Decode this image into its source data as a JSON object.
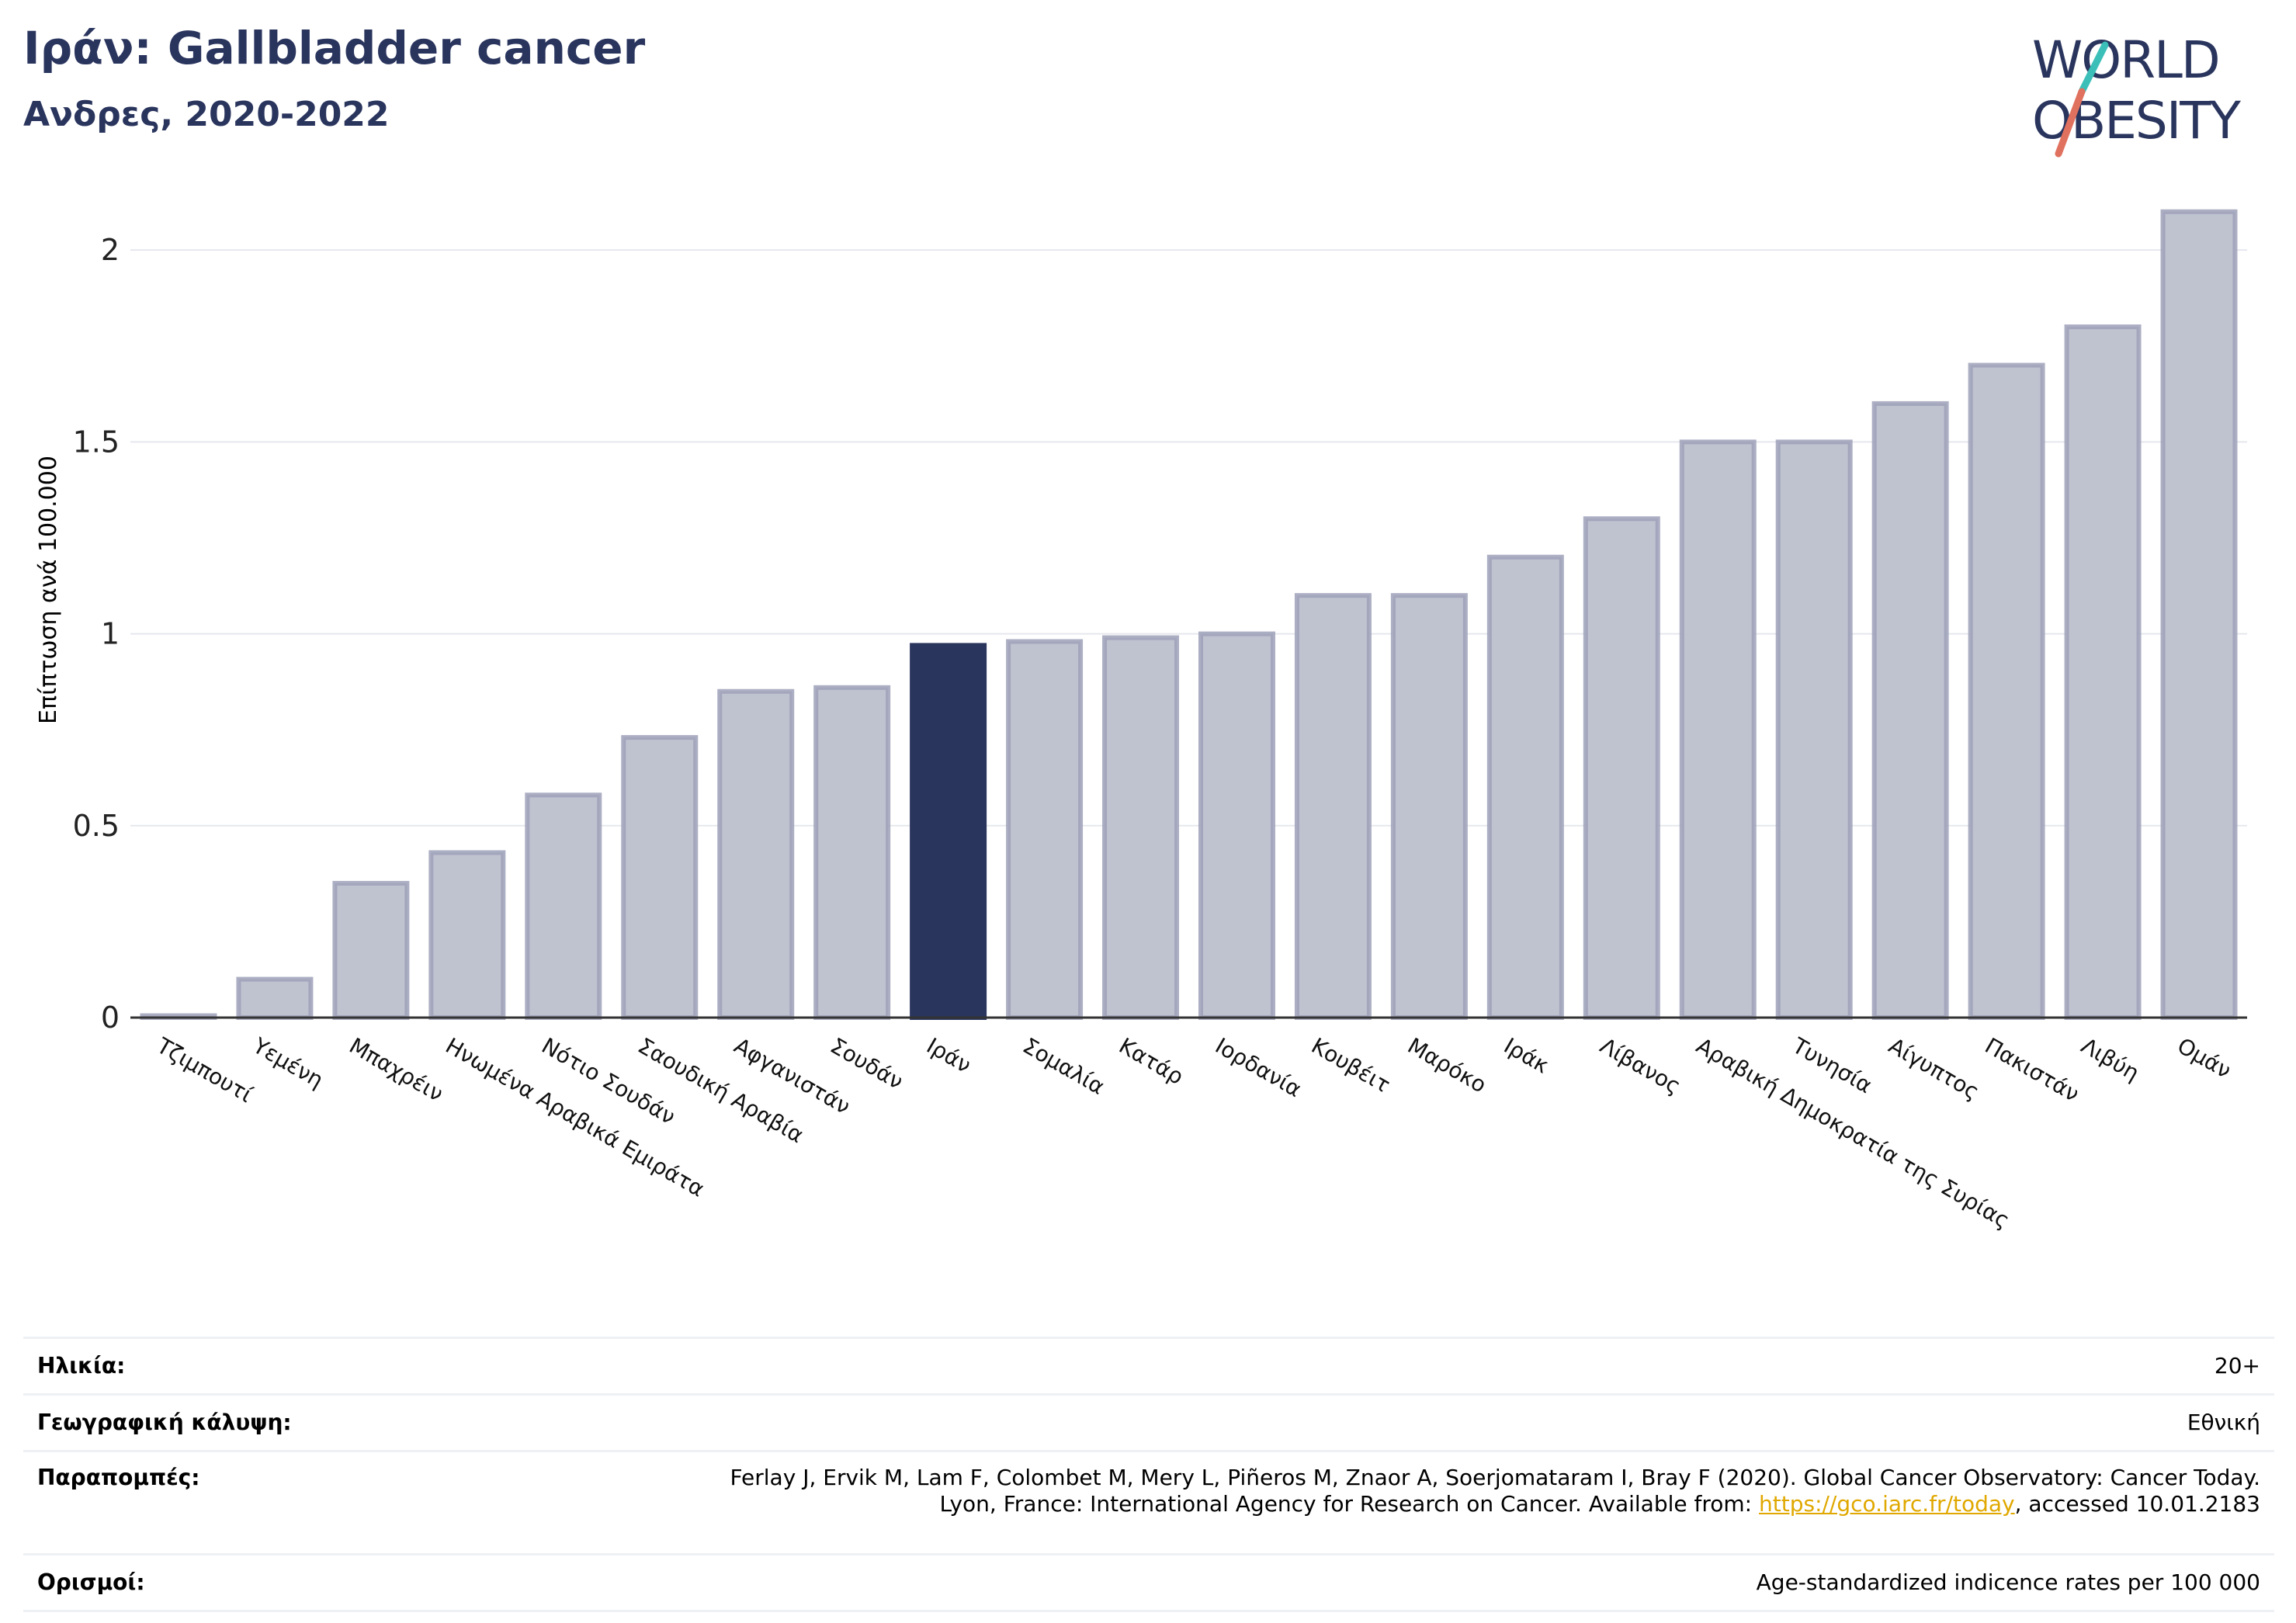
{
  "header": {
    "title": "Ιράν: Gallbladder cancer",
    "subtitle": "Ανδρες, 2020-2022"
  },
  "logo": {
    "line1": "WORLD",
    "line2": "OBESITY",
    "text_color": "#2a355e",
    "slash_colors": [
      "#e0715f",
      "#3bbfb8"
    ]
  },
  "colors": {
    "highlight": "#2a355e",
    "bar_fill": "#bfc2cf",
    "bar_stroke": "#9da1b8",
    "grid": "#e6e8ee",
    "axis": "#333333"
  },
  "chart_data": {
    "type": "bar",
    "title": "Ιράν: Gallbladder cancer",
    "subtitle": "Ανδρες, 2020-2022",
    "ylabel": "Επίπτωση ανά 100.000",
    "xlabel": "",
    "ylim": [
      0,
      2.15
    ],
    "yticks": [
      0,
      0.5,
      1,
      1.5,
      2
    ],
    "ytick_labels": [
      "0",
      "0.5",
      "1",
      "1.5",
      "2"
    ],
    "grid": true,
    "highlight_category": "Ιράν",
    "categories": [
      "Τζιμπουτί",
      "Υεμένη",
      "Μπαχρέιν",
      "Ηνωμένα Αραβικά Εμιράτα",
      "Νότιο Σουδάν",
      "Σαουδική Αραβία",
      "Αφγανιστάν",
      "Σουδάν",
      "Ιράν",
      "Σομαλία",
      "Κατάρ",
      "Ιορδανία",
      "Κουβέιτ",
      "Μαρόκο",
      "Ιράκ",
      "Λίβανος",
      "Αραβική Δημοκρατία της Συρίας",
      "Τυνησία",
      "Αίγυπτος",
      "Πακιστάν",
      "Λιβύη",
      "Ομάν"
    ],
    "values": [
      0.005,
      0.1,
      0.35,
      0.43,
      0.58,
      0.73,
      0.85,
      0.86,
      0.97,
      0.98,
      0.99,
      1.0,
      1.1,
      1.1,
      1.2,
      1.3,
      1.5,
      1.5,
      1.6,
      1.7,
      1.8,
      2.1
    ]
  },
  "info": {
    "age_label": "Ηλικία:",
    "age_value": "20+",
    "geo_label": "Γεωγραφική κάλυψη:",
    "geo_value": "Εθνική",
    "ref_label": "Παραπομπές:",
    "ref_line1": "Ferlay J, Ervik M, Lam F, Colombet M, Mery L, Piñeros M, Znaor A, Soerjomataram I, Bray F (2020). Global Cancer Observatory: Cancer Today.",
    "ref_line2_prefix": "Lyon, France: International Agency for Research on Cancer. Available from: ",
    "ref_link": "https://gco.iarc.fr/today",
    "ref_line2_suffix": ", accessed 10.01.2183",
    "def_label": "Ορισμοί:",
    "def_value": "Age-standardized indicence rates per 100 000"
  }
}
